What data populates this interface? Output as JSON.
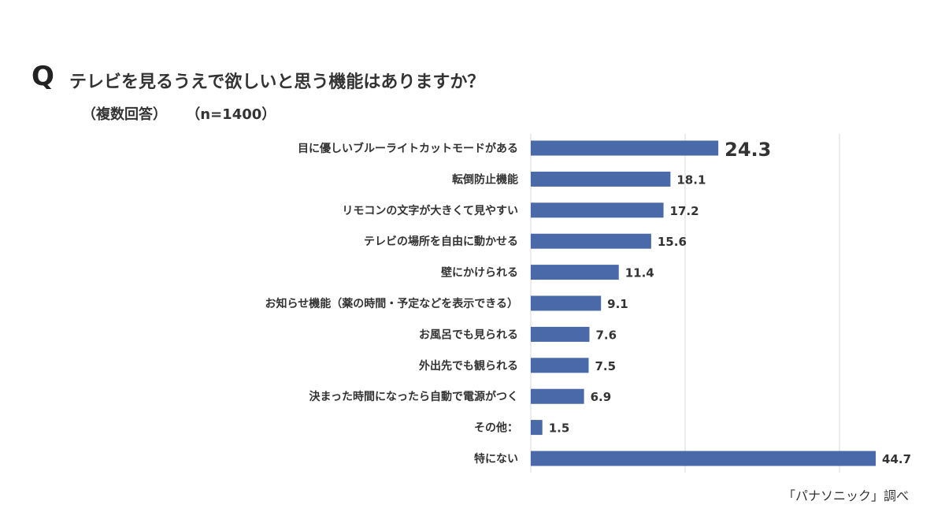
{
  "header": {
    "q_mark": "Q",
    "title": "テレビを見るうえで欲しいと思う機能はありますか？",
    "note": "（複数回答）",
    "sample": "（n=1400）"
  },
  "source": "「パナソニック」調べ",
  "colors": {
    "bar": "#4a69a8",
    "grid": "#d9d9d9",
    "text": "#333333"
  },
  "chart_data": {
    "type": "bar",
    "orientation": "horizontal",
    "categories": [
      "目に優しいブルーライトカットモードがある",
      "転倒防止機能",
      "リモコンの文字が大きくて見やすい",
      "テレビの場所を自由に動かせる",
      "壁にかけられる",
      "お知らせ機能（薬の時間・予定などを表示できる）",
      "お風呂でも見られる",
      "外出先でも観られる",
      "決まった時間になったら自動で電源がつく",
      "その他：",
      "特にない"
    ],
    "values": [
      24.3,
      18.1,
      17.2,
      15.6,
      11.4,
      9.1,
      7.6,
      7.5,
      6.9,
      1.5,
      44.7
    ],
    "value_labels": [
      "24.3",
      "18.1",
      "17.2",
      "15.6",
      "11.4",
      "9.1",
      "7.6",
      "7.5",
      "6.9",
      "1.5",
      "44.7"
    ],
    "highlight_index": 0,
    "xlim": [
      0,
      50
    ],
    "grid": true,
    "gridline_values": [
      0,
      20,
      40
    ]
  }
}
